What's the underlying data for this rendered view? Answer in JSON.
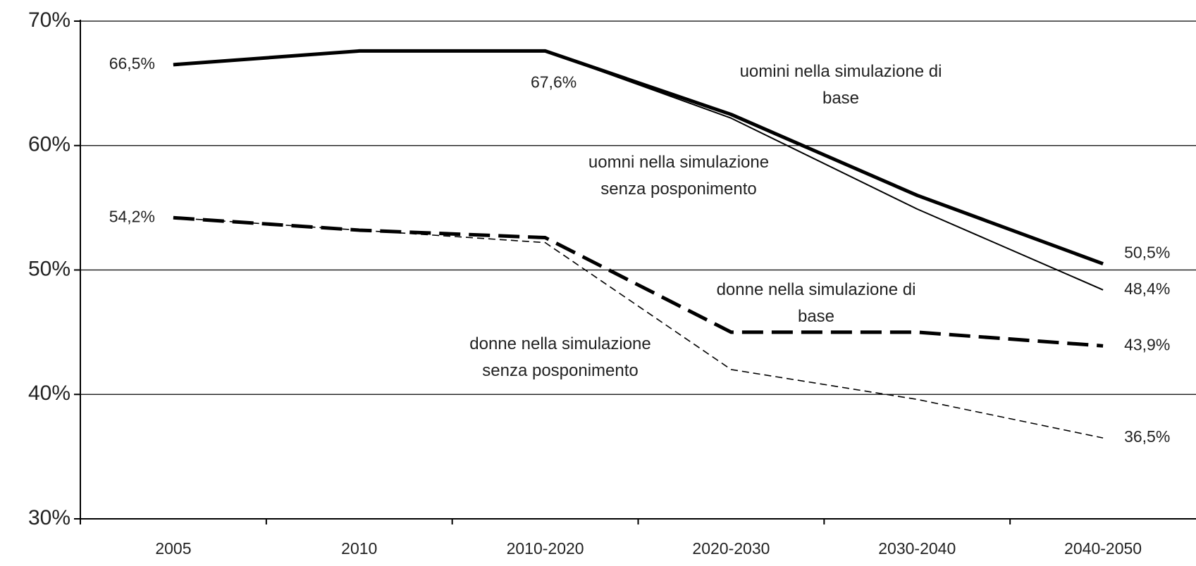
{
  "chart_data": {
    "type": "line",
    "categories": [
      "2005",
      "2010",
      "2010-2020",
      "2020-2030",
      "2030-2040",
      "2040-2050"
    ],
    "ylim": [
      30,
      70
    ],
    "yticks": [
      {
        "value": 30,
        "label": "30%"
      },
      {
        "value": 40,
        "label": "40%"
      },
      {
        "value": 50,
        "label": "50%"
      },
      {
        "value": 60,
        "label": "60%"
      },
      {
        "value": 70,
        "label": "70%"
      }
    ],
    "grid": true,
    "series": [
      {
        "name": "uomini nella simulazione di\nbase",
        "color": "#000000",
        "values": [
          66.5,
          67.6,
          67.6,
          62.5,
          56.0,
          50.5
        ],
        "value_labels": [
          "66,5%",
          null,
          "67,6%",
          null,
          null,
          "50,5%"
        ]
      },
      {
        "name": "uomni nella simulazione\nsenza posponimento",
        "color": "#000000",
        "values": [
          66.5,
          67.6,
          67.6,
          62.2,
          54.9,
          48.4
        ],
        "value_labels": [
          null,
          null,
          null,
          null,
          null,
          "48,4%"
        ]
      },
      {
        "name": "donne nella simulazione di\nbase",
        "color": "#000000",
        "values": [
          54.2,
          53.2,
          52.6,
          45.0,
          45.0,
          43.9
        ],
        "value_labels": [
          "54,2%",
          null,
          null,
          null,
          null,
          "43,9%"
        ]
      },
      {
        "name": "donne nella simulazione\nsenza posponimento",
        "color": "#000000",
        "values": [
          54.2,
          53.2,
          52.2,
          42.0,
          39.6,
          36.5
        ],
        "value_labels": [
          null,
          null,
          null,
          null,
          null,
          "36,5%"
        ]
      }
    ]
  }
}
